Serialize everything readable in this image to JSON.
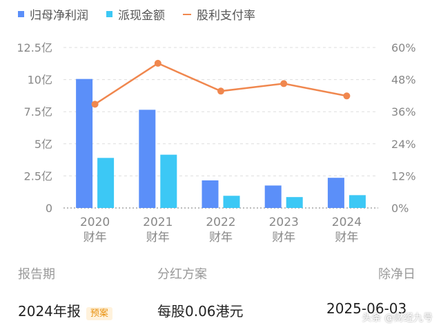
{
  "legend": [
    {
      "label": "归母净利润",
      "color": "#5b8ff9"
    },
    {
      "label": "派现金额",
      "color": "#3cc8f5"
    },
    {
      "label": "股利支付率",
      "color": "#f0874e"
    }
  ],
  "chart_data": {
    "type": "bar",
    "categories": [
      "2020\n财年",
      "2021\n财年",
      "2022\n财年",
      "2023\n财年",
      "2024\n财年"
    ],
    "series": [
      {
        "name": "归母净利润",
        "type": "bar",
        "axis": "left",
        "color": "#5b8ff9",
        "values": [
          10.05,
          7.65,
          2.15,
          1.75,
          2.35
        ]
      },
      {
        "name": "派现金额",
        "type": "bar",
        "axis": "left",
        "color": "#3cc8f5",
        "values": [
          3.9,
          4.15,
          0.95,
          0.85,
          1.0
        ]
      },
      {
        "name": "股利支付率",
        "type": "line",
        "axis": "right",
        "color": "#f0874e",
        "values": [
          38.8,
          54.1,
          43.7,
          46.5,
          41.9
        ]
      }
    ],
    "y_left": {
      "ticks": [
        "0",
        "2.5亿",
        "5亿",
        "7.5亿",
        "10亿",
        "12.5亿"
      ],
      "ylim": [
        0,
        12.5
      ]
    },
    "y_right": {
      "ticks": [
        "0%",
        "12%",
        "24%",
        "36%",
        "48%",
        "60%"
      ],
      "ylim": [
        0,
        60
      ]
    },
    "grid": true,
    "legend_position": "top-left"
  },
  "table": {
    "headers": [
      "报告期",
      "分红方案",
      "除净日"
    ],
    "row": {
      "period": "2024年报",
      "badge": "预案",
      "plan": "每股0.06港元",
      "date": "2025-06-03"
    }
  },
  "watermark": "头条 @财经九号"
}
